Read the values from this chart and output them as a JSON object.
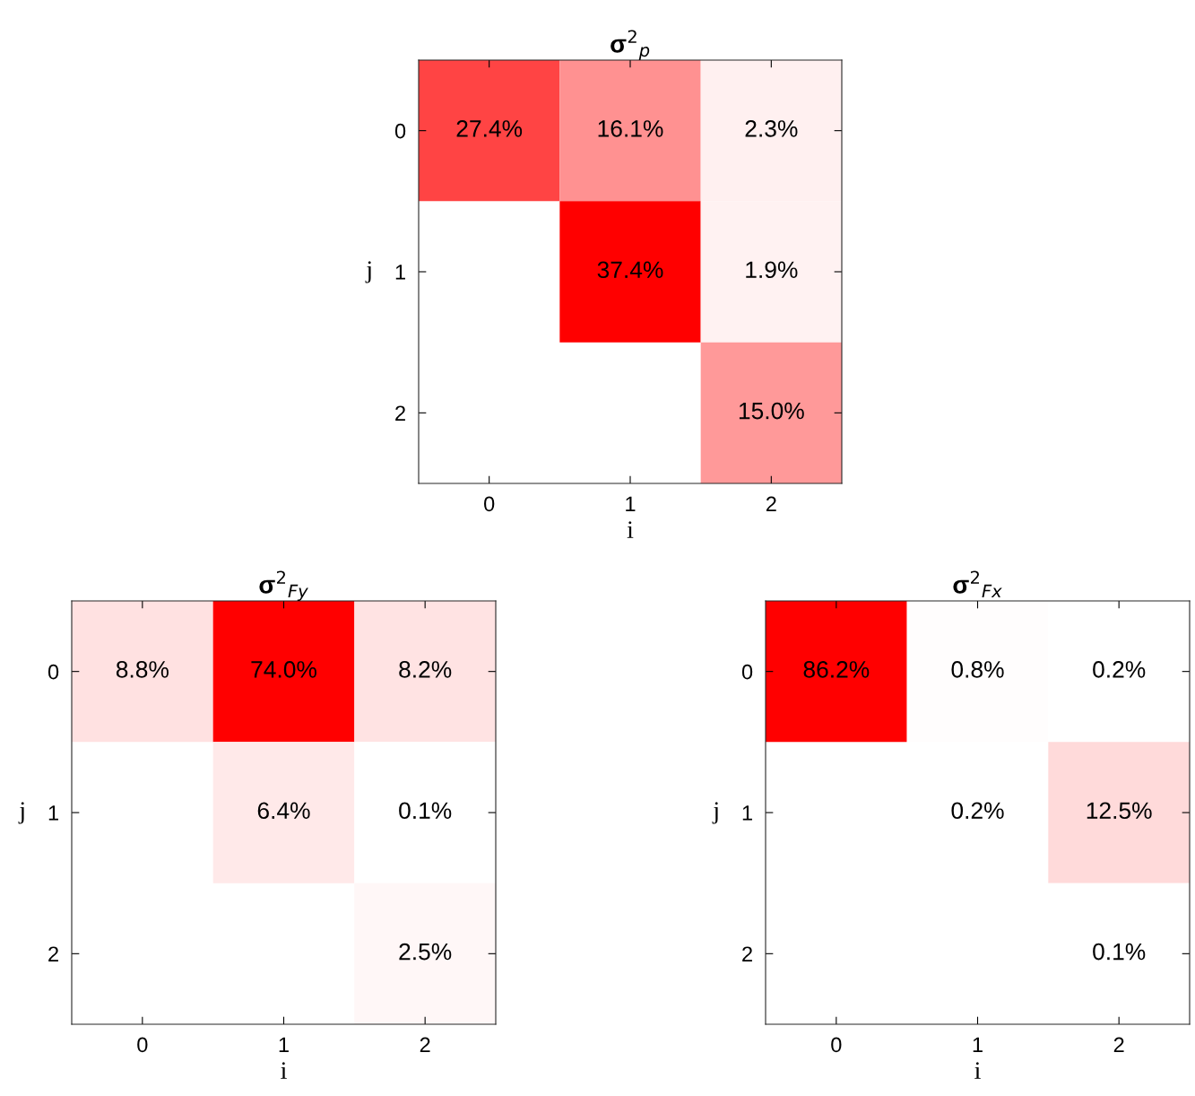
{
  "chart_data": [
    {
      "type": "heatmap",
      "title": "σ$^{2}$$_{p}$",
      "xlabel": "i",
      "ylabel": "j",
      "categories": [
        "0",
        "1",
        "2"
      ],
      "y_categories": [
        "0",
        "1",
        "2"
      ],
      "colors": [
        "#ffffff",
        "#ff0000"
      ],
      "cells": [
        [
          27.4,
          16.1,
          2.3
        ],
        [
          null,
          37.4,
          1.9
        ],
        [
          null,
          null,
          15.0
        ]
      ],
      "cell_labels": [
        [
          "27.4%",
          "16.1%",
          "2.3%"
        ],
        [
          null,
          "37.4%",
          "1.9%"
        ],
        [
          null,
          null,
          "15.0%"
        ]
      ]
    },
    {
      "type": "heatmap",
      "title": "σ$^{2}$$_{Fy}$",
      "xlabel": "i",
      "ylabel": "j",
      "categories": [
        "0",
        "1",
        "2"
      ],
      "y_categories": [
        "0",
        "1",
        "2"
      ],
      "colors": [
        "#ffffff",
        "#ff0000"
      ],
      "cells": [
        [
          8.8,
          74.0,
          8.2
        ],
        [
          null,
          6.4,
          0.1
        ],
        [
          null,
          null,
          2.5
        ]
      ],
      "cell_labels": [
        [
          "8.8%",
          "74.0%",
          "8.2%"
        ],
        [
          null,
          "6.4%",
          "0.1%"
        ],
        [
          null,
          null,
          "2.5%"
        ]
      ]
    },
    {
      "type": "heatmap",
      "title": "σ$^{2}$$_{Fx}$",
      "xlabel": "i",
      "ylabel": "j",
      "categories": [
        "0",
        "1",
        "2"
      ],
      "y_categories": [
        "0",
        "1",
        "2"
      ],
      "colors": [
        "#ffffff",
        "#ff0000"
      ],
      "cells": [
        [
          86.2,
          0.8,
          0.2
        ],
        [
          null,
          0.2,
          12.5
        ],
        [
          null,
          null,
          0.1
        ]
      ],
      "cell_labels": [
        [
          "86.2%",
          "0.8%",
          "0.2%"
        ],
        [
          null,
          "0.2%",
          "12.5%"
        ],
        [
          null,
          null,
          "0.1%"
        ]
      ]
    }
  ]
}
